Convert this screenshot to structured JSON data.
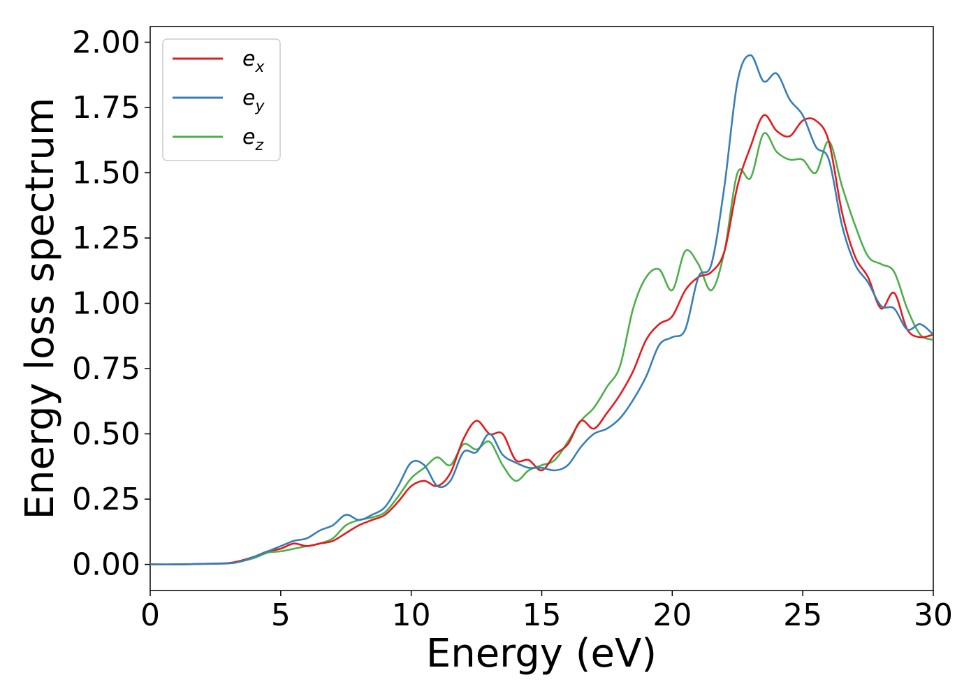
{
  "chart_data": {
    "type": "line",
    "title": "",
    "xlabel": "Energy (eV)",
    "ylabel": "Energy loss spectrum",
    "xlim": [
      0,
      30
    ],
    "ylim": [
      -0.1,
      2.06
    ],
    "xticks": [
      0,
      5,
      10,
      15,
      20,
      25,
      30
    ],
    "xtick_labels": [
      "0",
      "5",
      "10",
      "15",
      "20",
      "25",
      "30"
    ],
    "yticks": [
      0,
      0.25,
      0.5,
      0.75,
      1.0,
      1.25,
      1.5,
      1.75,
      2.0
    ],
    "ytick_labels": [
      "0.00",
      "0.25",
      "0.50",
      "0.75",
      "1.00",
      "1.25",
      "1.50",
      "1.75",
      "2.00"
    ],
    "grid": false,
    "legend": "top-left",
    "series": [
      {
        "name": "e",
        "subscript": "x",
        "color": "#e41a1c",
        "x": [
          0,
          1,
          2,
          3,
          3.5,
          4,
          4.5,
          5,
          5.5,
          6,
          6.5,
          7,
          7.5,
          8,
          8.5,
          9,
          9.5,
          10,
          10.5,
          11,
          11.5,
          12,
          12.5,
          13,
          13.5,
          14,
          14.5,
          15,
          15.5,
          16,
          16.5,
          17,
          17.5,
          18,
          18.5,
          19,
          19.5,
          20,
          20.5,
          21,
          21.5,
          22,
          22.5,
          23,
          23.5,
          24,
          24.5,
          25,
          25.5,
          26,
          26.5,
          27,
          27.5,
          28,
          28.5,
          29,
          29.5,
          30
        ],
        "y": [
          0,
          0,
          0.002,
          0.005,
          0.015,
          0.03,
          0.05,
          0.06,
          0.08,
          0.07,
          0.08,
          0.09,
          0.12,
          0.15,
          0.17,
          0.19,
          0.24,
          0.3,
          0.32,
          0.3,
          0.35,
          0.48,
          0.55,
          0.5,
          0.5,
          0.4,
          0.4,
          0.36,
          0.42,
          0.46,
          0.55,
          0.52,
          0.58,
          0.65,
          0.74,
          0.86,
          0.92,
          0.95,
          1.05,
          1.1,
          1.12,
          1.2,
          1.45,
          1.6,
          1.72,
          1.66,
          1.64,
          1.7,
          1.7,
          1.62,
          1.35,
          1.18,
          1.1,
          0.98,
          1.04,
          0.9,
          0.87,
          0.88
        ]
      },
      {
        "name": "e",
        "subscript": "y",
        "color": "#377eb8",
        "x": [
          0,
          1,
          2,
          3,
          3.5,
          4,
          4.5,
          5,
          5.5,
          6,
          6.5,
          7,
          7.5,
          8,
          8.5,
          9,
          9.5,
          10,
          10.5,
          11,
          11.5,
          12,
          12.5,
          13,
          13.5,
          14,
          14.5,
          15,
          15.5,
          16,
          16.5,
          17,
          17.5,
          18,
          18.5,
          19,
          19.5,
          20,
          20.5,
          21,
          21.5,
          22,
          22.5,
          23,
          23.5,
          24,
          24.5,
          25,
          25.5,
          26,
          26.5,
          27,
          27.5,
          28,
          28.5,
          29,
          29.5,
          30
        ],
        "y": [
          0,
          0,
          0.002,
          0.004,
          0.012,
          0.03,
          0.05,
          0.07,
          0.09,
          0.1,
          0.13,
          0.15,
          0.19,
          0.17,
          0.19,
          0.22,
          0.3,
          0.39,
          0.38,
          0.3,
          0.32,
          0.43,
          0.43,
          0.5,
          0.42,
          0.39,
          0.37,
          0.37,
          0.36,
          0.38,
          0.45,
          0.5,
          0.52,
          0.56,
          0.63,
          0.72,
          0.84,
          0.87,
          0.9,
          1.1,
          1.15,
          1.45,
          1.85,
          1.95,
          1.85,
          1.88,
          1.78,
          1.72,
          1.6,
          1.55,
          1.3,
          1.15,
          1.08,
          0.99,
          0.98,
          0.9,
          0.92,
          0.88
        ]
      },
      {
        "name": "e",
        "subscript": "z",
        "color": "#4daf4a",
        "x": [
          0,
          1,
          2,
          3,
          3.5,
          4,
          4.5,
          5,
          5.5,
          6,
          6.5,
          7,
          7.5,
          8,
          8.5,
          9,
          9.5,
          10,
          10.5,
          11,
          11.5,
          12,
          12.5,
          13,
          13.5,
          14,
          14.5,
          15,
          15.5,
          16,
          16.5,
          17,
          17.5,
          18,
          18.5,
          19,
          19.5,
          20,
          20.5,
          21,
          21.5,
          22,
          22.5,
          23,
          23.5,
          24,
          24.5,
          25,
          25.5,
          26,
          26.5,
          27,
          27.5,
          28,
          28.5,
          29,
          29.5,
          30
        ],
        "y": [
          0,
          0,
          0.002,
          0.004,
          0.012,
          0.025,
          0.045,
          0.05,
          0.06,
          0.07,
          0.08,
          0.1,
          0.15,
          0.17,
          0.18,
          0.2,
          0.26,
          0.33,
          0.37,
          0.41,
          0.38,
          0.46,
          0.44,
          0.47,
          0.38,
          0.32,
          0.36,
          0.38,
          0.4,
          0.47,
          0.55,
          0.6,
          0.68,
          0.76,
          0.98,
          1.1,
          1.13,
          1.05,
          1.2,
          1.15,
          1.05,
          1.2,
          1.5,
          1.48,
          1.65,
          1.58,
          1.55,
          1.55,
          1.5,
          1.62,
          1.45,
          1.3,
          1.18,
          1.15,
          1.12,
          0.98,
          0.88,
          0.86
        ]
      }
    ]
  }
}
